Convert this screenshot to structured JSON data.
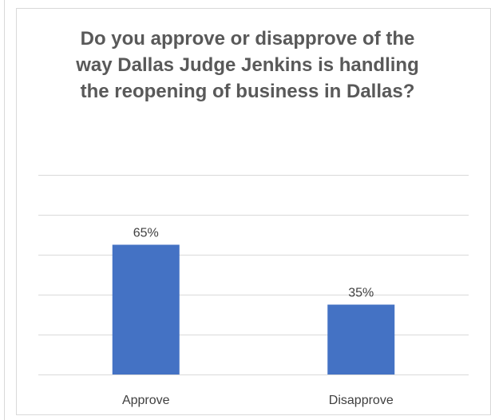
{
  "chart_data": {
    "type": "bar",
    "title": "Do you approve or disapprove of the way Dallas Judge Jenkins is handling the reopening of business in Dallas?",
    "categories": [
      "Approve",
      "Disapprove"
    ],
    "values": [
      65,
      35
    ],
    "data_labels": [
      "65%",
      "35%"
    ],
    "ylim": [
      0,
      100
    ],
    "grid": true,
    "bar_color": "#4472c4",
    "grid_color": "#d9d9d9"
  }
}
